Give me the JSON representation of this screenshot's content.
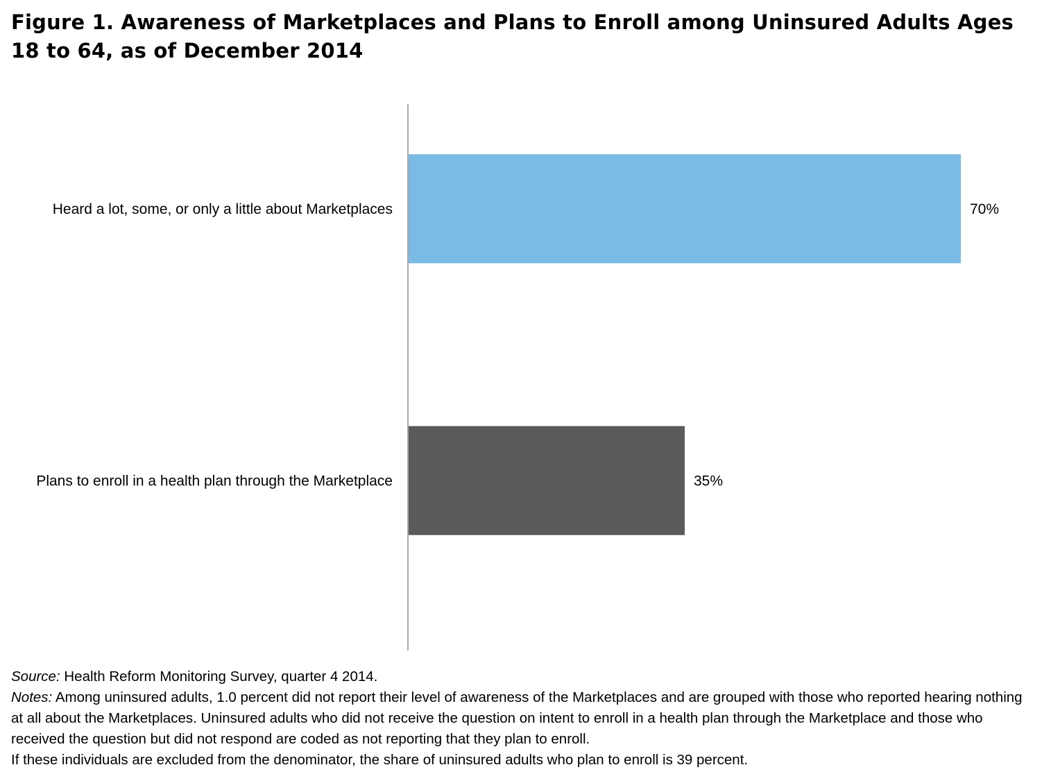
{
  "figure": {
    "title": "Figure 1. Awareness of Marketplaces and Plans to Enroll among Uninsured Adults Ages 18 to 64, as of December 2014"
  },
  "chart_data": {
    "type": "bar",
    "orientation": "horizontal",
    "title": "Figure 1. Awareness of Marketplaces and Plans to Enroll among Uninsured Adults Ages 18 to 64, as of December 2014",
    "categories": [
      "Heard a lot, some, or only a little about Marketplaces",
      "Plans to enroll in a health plan through the Marketplace"
    ],
    "values": [
      70,
      35
    ],
    "value_labels": [
      "70%",
      "35%"
    ],
    "colors": [
      "#79bbe4",
      "#5a5a5a"
    ],
    "xlim": [
      0,
      100
    ],
    "xlabel": "",
    "ylabel": "",
    "grid": false,
    "legend": "none"
  },
  "notes": {
    "source_label": "Source:",
    "source_text": "Health Reform Monitoring Survey, quarter 4 2014.",
    "notes_label": "Notes:",
    "notes_text": "Among uninsured adults, 1.0 percent did not report their level of awareness of the Marketplaces and are grouped with those who reported hearing nothing at all about the Marketplaces. Uninsured adults who did not receive the question on intent to enroll in a health plan through the Marketplace and those who received the question but did not respond are coded as not reporting that they plan to enroll.",
    "notes_text_2": "If these individuals are excluded from the denominator, the share of uninsured adults who plan to enroll is 39 percent."
  }
}
